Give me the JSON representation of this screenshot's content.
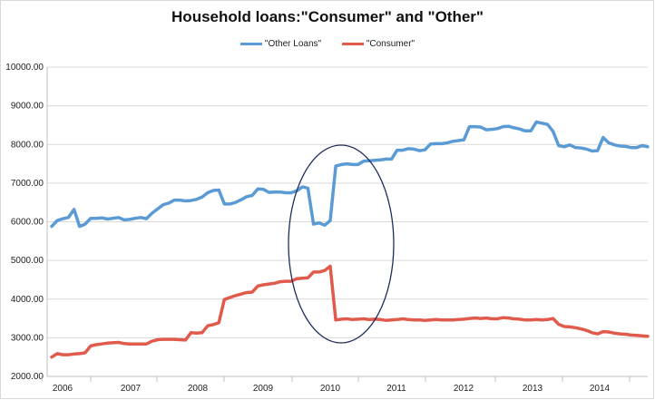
{
  "chart_data": {
    "type": "line",
    "title": "Household loans:\"Consumer\" and \"Other\"",
    "xlabel": "",
    "ylabel": "",
    "ylim": [
      2000,
      10000
    ],
    "y_ticks": [
      "2000.00",
      "3000.00",
      "4000.00",
      "5000.00",
      "6000.00",
      "7000.00",
      "8000.00",
      "9000.00",
      "10000.00"
    ],
    "x_ticks": [
      "2006",
      "2007",
      "2008",
      "2009",
      "2010",
      "2011",
      "2012",
      "2013",
      "2014"
    ],
    "grid": true,
    "legend_position": "top",
    "annotation": "ellipse around 2010",
    "series": [
      {
        "name": "\"Other Loans\"",
        "color": "#5b9bd5",
        "values": [
          5880,
          6030,
          6080,
          6110,
          6320,
          5880,
          5940,
          6090,
          6090,
          6100,
          6070,
          6090,
          6110,
          6050,
          6060,
          6090,
          6110,
          6080,
          6220,
          6330,
          6440,
          6480,
          6560,
          6560,
          6540,
          6550,
          6580,
          6640,
          6750,
          6810,
          6820,
          6460,
          6460,
          6500,
          6570,
          6650,
          6680,
          6850,
          6840,
          6760,
          6770,
          6770,
          6750,
          6750,
          6800,
          6900,
          6870,
          5940,
          5970,
          5910,
          6030,
          7440,
          7480,
          7500,
          7480,
          7480,
          7570,
          7580,
          7590,
          7600,
          7620,
          7620,
          7850,
          7850,
          7890,
          7880,
          7840,
          7860,
          8010,
          8020,
          8020,
          8040,
          8080,
          8100,
          8120,
          8460,
          8460,
          8450,
          8380,
          8390,
          8410,
          8460,
          8470,
          8430,
          8400,
          8350,
          8350,
          8580,
          8550,
          8520,
          8340,
          7970,
          7940,
          7990,
          7920,
          7910,
          7880,
          7830,
          7840,
          8180,
          8040,
          7990,
          7960,
          7950,
          7920,
          7920,
          7970,
          7940
        ]
      },
      {
        "name": "\"Consumer\"",
        "color": "#e05b4c",
        "values": [
          2500,
          2590,
          2560,
          2560,
          2580,
          2590,
          2610,
          2790,
          2820,
          2840,
          2860,
          2870,
          2880,
          2850,
          2840,
          2840,
          2840,
          2840,
          2910,
          2950,
          2960,
          2960,
          2960,
          2950,
          2940,
          3130,
          3120,
          3130,
          3310,
          3340,
          3390,
          3990,
          4040,
          4090,
          4130,
          4170,
          4180,
          4340,
          4370,
          4390,
          4410,
          4450,
          4460,
          4460,
          4530,
          4540,
          4550,
          4700,
          4700,
          4740,
          4850,
          3460,
          3480,
          3490,
          3470,
          3480,
          3490,
          3470,
          3480,
          3470,
          3450,
          3460,
          3470,
          3490,
          3470,
          3460,
          3460,
          3450,
          3460,
          3470,
          3460,
          3460,
          3460,
          3470,
          3480,
          3500,
          3510,
          3500,
          3510,
          3490,
          3490,
          3520,
          3510,
          3490,
          3480,
          3460,
          3460,
          3470,
          3460,
          3470,
          3500,
          3350,
          3290,
          3280,
          3260,
          3230,
          3190,
          3130,
          3100,
          3160,
          3150,
          3120,
          3100,
          3090,
          3070,
          3060,
          3050,
          3040
        ]
      }
    ]
  }
}
